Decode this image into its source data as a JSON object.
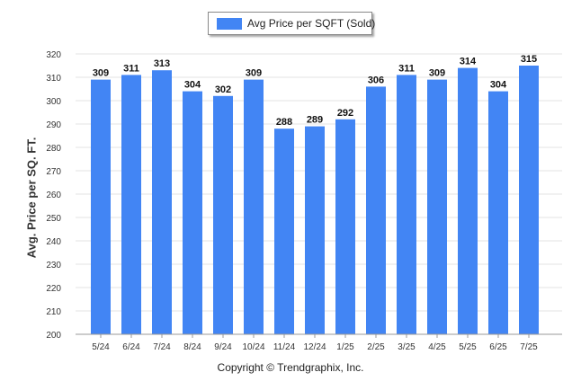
{
  "legend": {
    "label": "Avg Price per SQFT (Sold)",
    "color": "#4285f4"
  },
  "footer": {
    "copyright": "Copyright © Trendgraphix, Inc."
  },
  "chart_data": {
    "type": "bar",
    "title": "",
    "xlabel": "",
    "ylabel": "Avg. Price per SQ. FT.",
    "categories": [
      "5/24",
      "6/24",
      "7/24",
      "8/24",
      "9/24",
      "10/24",
      "11/24",
      "12/24",
      "1/25",
      "2/25",
      "3/25",
      "4/25",
      "5/25",
      "6/25",
      "7/25"
    ],
    "series": [
      {
        "name": "Avg Price per SQFT (Sold)",
        "values": [
          309,
          311,
          313,
          304,
          302,
          309,
          288,
          289,
          292,
          306,
          311,
          309,
          314,
          304,
          315
        ]
      }
    ],
    "ylim": [
      200,
      320
    ],
    "yticks": [
      200,
      210,
      220,
      230,
      240,
      250,
      260,
      270,
      280,
      290,
      300,
      310,
      320
    ],
    "grid": true,
    "legend_position": "top-center",
    "bar_color": "#4285f4"
  }
}
